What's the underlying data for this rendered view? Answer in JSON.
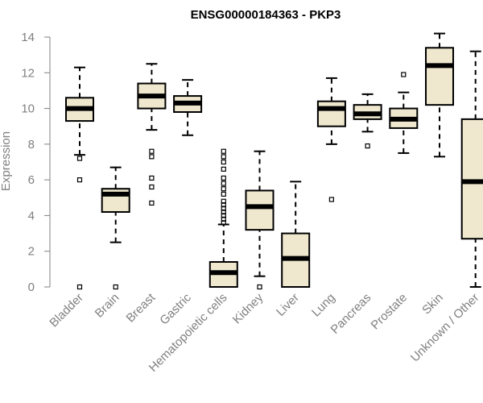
{
  "chart_data": {
    "type": "boxplot",
    "title": "ENSG00000184363 - PKP3",
    "xlabel": "",
    "ylabel": "Expression",
    "ylim": [
      0,
      14
    ],
    "yticks": [
      0,
      2,
      4,
      6,
      8,
      10,
      12,
      14
    ],
    "categories": [
      "Bladder",
      "Brain",
      "Breast",
      "Gastric",
      "Hematopoietic cells",
      "Kidney",
      "Liver",
      "Lung",
      "Pancreas",
      "Prostate",
      "Skin",
      "Unknown / Other"
    ],
    "box_color": "#efe8cf",
    "series": [
      {
        "name": "Bladder",
        "whisker_low": 7.4,
        "q1": 9.3,
        "median": 10.0,
        "q3": 10.6,
        "whisker_high": 12.3,
        "outliers": [
          7.2,
          6.0,
          0.0
        ]
      },
      {
        "name": "Brain",
        "whisker_low": 2.5,
        "q1": 4.2,
        "median": 5.2,
        "q3": 5.5,
        "whisker_high": 6.7,
        "outliers": [
          0.0
        ]
      },
      {
        "name": "Breast",
        "whisker_low": 8.8,
        "q1": 10.0,
        "median": 10.7,
        "q3": 11.4,
        "whisker_high": 12.5,
        "outliers": [
          7.6,
          7.3,
          6.1,
          5.6,
          4.7
        ]
      },
      {
        "name": "Gastric",
        "whisker_low": 8.5,
        "q1": 9.8,
        "median": 10.3,
        "q3": 10.7,
        "whisker_high": 11.6,
        "outliers": []
      },
      {
        "name": "Hematopoietic cells",
        "whisker_low": 0.0,
        "q1": 0.0,
        "median": 0.8,
        "q3": 1.4,
        "whisker_high": 3.5,
        "outliers": [
          3.6,
          3.8,
          4.0,
          4.2,
          4.4,
          4.6,
          4.8,
          5.2,
          5.5,
          5.8,
          6.1,
          6.6,
          7.0,
          7.3,
          7.6
        ]
      },
      {
        "name": "Kidney",
        "whisker_low": 0.6,
        "q1": 3.2,
        "median": 4.5,
        "q3": 5.4,
        "whisker_high": 7.6,
        "outliers": [
          0.0
        ]
      },
      {
        "name": "Liver",
        "whisker_low": 0.0,
        "q1": 0.0,
        "median": 1.6,
        "q3": 3.0,
        "whisker_high": 5.9,
        "outliers": []
      },
      {
        "name": "Lung",
        "whisker_low": 8.0,
        "q1": 9.0,
        "median": 10.0,
        "q3": 10.4,
        "whisker_high": 11.7,
        "outliers": [
          4.9
        ]
      },
      {
        "name": "Pancreas",
        "whisker_low": 8.7,
        "q1": 9.4,
        "median": 9.7,
        "q3": 10.2,
        "whisker_high": 10.8,
        "outliers": [
          7.9
        ]
      },
      {
        "name": "Prostate",
        "whisker_low": 7.5,
        "q1": 8.9,
        "median": 9.4,
        "q3": 10.0,
        "whisker_high": 10.9,
        "outliers": [
          11.9
        ]
      },
      {
        "name": "Skin",
        "whisker_low": 7.3,
        "q1": 10.2,
        "median": 12.4,
        "q3": 13.4,
        "whisker_high": 14.2,
        "outliers": []
      },
      {
        "name": "Unknown / Other",
        "whisker_low": 0.0,
        "q1": 2.7,
        "median": 5.9,
        "q3": 9.4,
        "whisker_high": 13.2,
        "outliers": []
      }
    ]
  }
}
